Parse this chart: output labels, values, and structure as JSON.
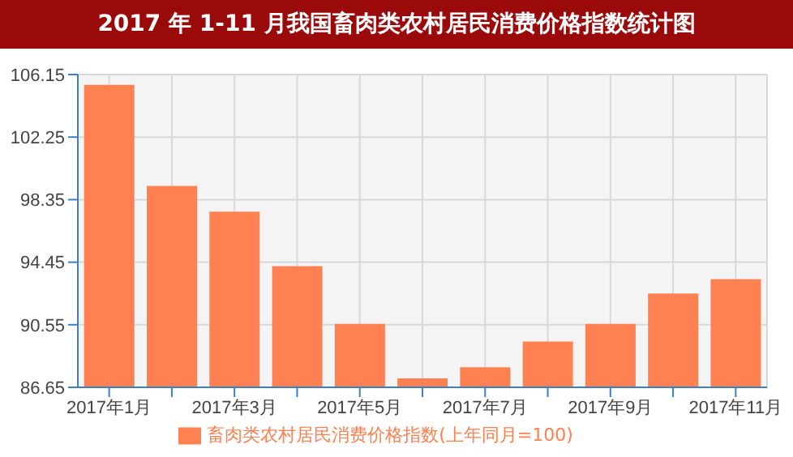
{
  "chart_data": {
    "type": "bar",
    "title": "2017 年 1-11 月我国畜肉类农村居民消费价格指数统计图",
    "categories": [
      "2017年1月",
      null,
      "2017年3月",
      null,
      "2017年5月",
      null,
      "2017年7月",
      null,
      "2017年9月",
      null,
      "2017年11月"
    ],
    "series": [
      {
        "name": "畜肉类农村居民消费价格指数(上年同月=100)",
        "color": "#ff8050",
        "values": [
          105.5,
          99.2,
          97.6,
          94.2,
          90.6,
          87.2,
          87.9,
          89.5,
          90.6,
          92.5,
          93.4
        ]
      }
    ],
    "ylim": [
      86.65,
      106.15
    ],
    "yticks": [
      86.65,
      90.55,
      94.45,
      98.35,
      102.25,
      106.15
    ],
    "grid": true,
    "legend": "bottom"
  }
}
